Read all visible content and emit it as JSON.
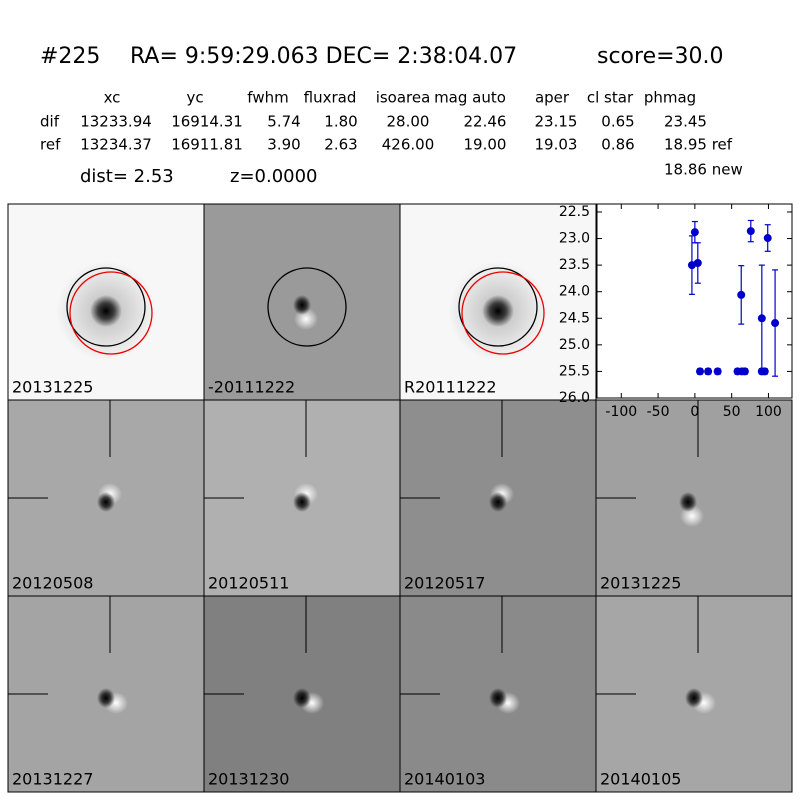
{
  "header": {
    "id": "#225",
    "coords": "RA= 9:59:29.063 DEC= 2:38:04.07",
    "score": "score=30.0"
  },
  "table": {
    "columns": [
      "xc",
      "yc",
      "fwhm",
      "fluxrad",
      "isoarea",
      "mag auto",
      "aper",
      "cl star",
      "phmag"
    ],
    "rows": [
      [
        "dif",
        "13233.94",
        "16914.31",
        "5.74",
        "1.80",
        "28.00",
        "22.46",
        "23.15",
        "0.65",
        "23.45"
      ],
      [
        "ref",
        "13234.37",
        "16911.81",
        "3.90",
        "2.63",
        "426.00",
        "19.00",
        "19.03",
        "0.86",
        "18.95 ref"
      ]
    ],
    "extra": "18.86 new",
    "dist": "dist=  2.53",
    "z": "z=0.0000"
  },
  "stamps": [
    {
      "label": "20131225",
      "color": "#000000"
    },
    {
      "label": "-20111222",
      "color": "#000000"
    },
    {
      "label": "R20111222",
      "color": "#000000"
    },
    {
      "label": "20120508",
      "color": "#000000"
    },
    {
      "label": "20120511",
      "color": "#000000"
    },
    {
      "label": "20120517",
      "color": "#000000"
    },
    {
      "label": "20131225",
      "color": "#ff0000"
    },
    {
      "label": "20131227",
      "color": "#000000"
    },
    {
      "label": "20131230",
      "color": "#000000"
    },
    {
      "label": "20140103",
      "color": "#000000"
    },
    {
      "label": "20140105",
      "color": "#000000"
    }
  ],
  "chart_data": {
    "type": "scatter",
    "x": [
      -4,
      0,
      4,
      7,
      18,
      31,
      58,
      63,
      64,
      68,
      76,
      91,
      91,
      95,
      99,
      109
    ],
    "series": [
      {
        "color": "#0000cc",
        "values": [
          23.5,
          22.88,
          23.46,
          25.5,
          25.5,
          25.5,
          25.5,
          24.06,
          25.5,
          25.5,
          22.86,
          24.5,
          25.5,
          25.5,
          22.99,
          24.59
        ],
        "errors": [
          0.55,
          0.2,
          0.38,
          0.05,
          0.05,
          0.05,
          0.05,
          0.55,
          0.05,
          0.05,
          0.2,
          1.0,
          0.05,
          0.05,
          0.25,
          1.0
        ]
      }
    ],
    "xlim": [
      -133,
      132
    ],
    "ylim": [
      26.0,
      22.35
    ],
    "xticks": [
      -100,
      -50,
      0,
      50,
      100
    ],
    "yticks": [
      {
        "value": 22.5,
        "label": "22.5"
      },
      {
        "value": 23.0,
        "label": "23.0"
      },
      {
        "value": 23.5,
        "label": "23.5"
      },
      {
        "value": 24.0,
        "label": "24.0"
      },
      {
        "value": 24.5,
        "label": "24.5"
      },
      {
        "value": 25.0,
        "label": "25.0"
      },
      {
        "value": 25.5,
        "label": "25.5"
      },
      {
        "value": 26.0,
        "label": "26.0"
      }
    ]
  }
}
